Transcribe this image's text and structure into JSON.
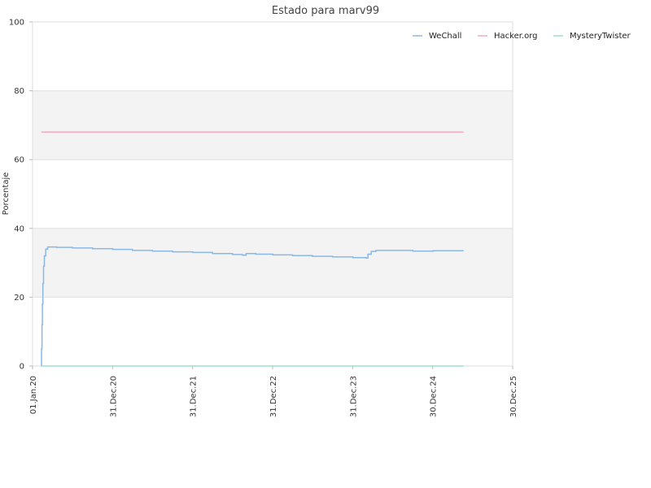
{
  "chart_data": {
    "type": "line",
    "title": "Estado para marv99",
    "xlabel": "",
    "ylabel": "Porcentaje",
    "ylim": [
      0,
      100
    ],
    "xlim": [
      "2020-01-01",
      "2025-12-30"
    ],
    "y_ticks": [
      "0",
      "20",
      "40",
      "60",
      "80",
      "100"
    ],
    "x_ticks": [
      {
        "date": "2020-01-01",
        "label": "01.Jan.20"
      },
      {
        "date": "2020-12-31",
        "label": "31.Dec.20"
      },
      {
        "date": "2021-12-31",
        "label": "31.Dec.21"
      },
      {
        "date": "2022-12-31",
        "label": "31.Dec.22"
      },
      {
        "date": "2023-12-31",
        "label": "31.Dec.23"
      },
      {
        "date": "2024-12-30",
        "label": "30.Dec.24"
      },
      {
        "date": "2025-12-30",
        "label": "30.Dec.25"
      }
    ],
    "grid": "horizontal",
    "band_colors": [
      "#ffffff",
      "#f3f3f3"
    ],
    "legend_position": "top-right",
    "series": [
      {
        "name": "WeChall",
        "color": "#8ab8e6",
        "step": true,
        "points": [
          [
            "2020-02-10",
            0
          ],
          [
            "2020-02-11",
            5
          ],
          [
            "2020-02-13",
            12
          ],
          [
            "2020-02-15",
            18
          ],
          [
            "2020-02-17",
            24
          ],
          [
            "2020-02-20",
            29
          ],
          [
            "2020-02-24",
            32
          ],
          [
            "2020-03-01",
            34
          ],
          [
            "2020-03-10",
            34.6
          ],
          [
            "2020-04-20",
            34.5
          ],
          [
            "2020-07-01",
            34.3
          ],
          [
            "2020-10-01",
            34.1
          ],
          [
            "2021-01-01",
            33.9
          ],
          [
            "2021-04-01",
            33.6
          ],
          [
            "2021-07-01",
            33.4
          ],
          [
            "2021-10-01",
            33.2
          ],
          [
            "2022-01-01",
            33.0
          ],
          [
            "2022-04-01",
            32.7
          ],
          [
            "2022-07-01",
            32.4
          ],
          [
            "2022-08-15",
            32.2
          ],
          [
            "2022-09-01",
            32.7
          ],
          [
            "2022-10-15",
            32.5
          ],
          [
            "2023-01-01",
            32.3
          ],
          [
            "2023-04-01",
            32.1
          ],
          [
            "2023-07-01",
            31.9
          ],
          [
            "2023-10-01",
            31.7
          ],
          [
            "2024-01-01",
            31.5
          ],
          [
            "2024-03-01",
            31.4
          ],
          [
            "2024-03-10",
            32.5
          ],
          [
            "2024-03-25",
            33.3
          ],
          [
            "2024-04-15",
            33.6
          ],
          [
            "2024-07-01",
            33.6
          ],
          [
            "2024-10-01",
            33.4
          ],
          [
            "2025-01-01",
            33.5
          ],
          [
            "2025-05-20",
            33.5
          ]
        ]
      },
      {
        "name": "Hacker.org",
        "color": "#f0a8c4",
        "step": false,
        "points": [
          [
            "2020-02-10",
            68
          ],
          [
            "2025-05-20",
            68
          ]
        ]
      },
      {
        "name": "MysteryTwister",
        "color": "#9ee0c8",
        "step": false,
        "points": [
          [
            "2020-02-10",
            0
          ],
          [
            "2025-05-20",
            0
          ]
        ]
      }
    ]
  }
}
